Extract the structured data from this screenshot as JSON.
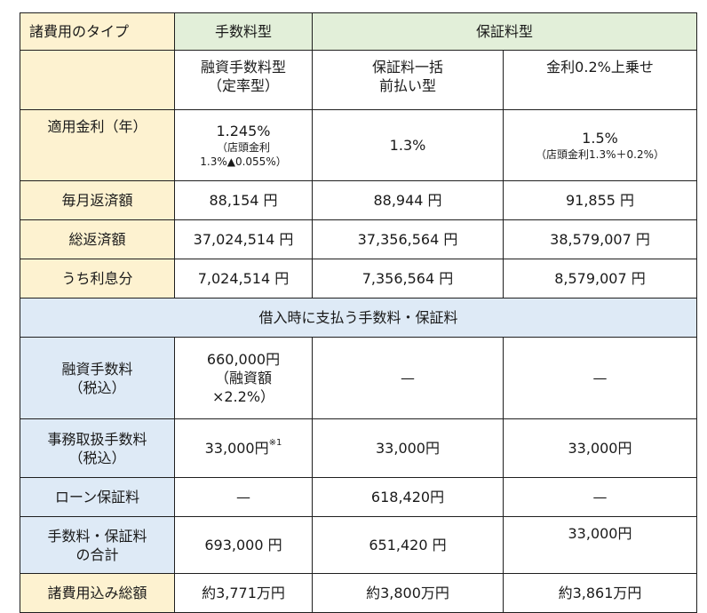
{
  "headers": {
    "corner": "諸費用のタイプ",
    "fee_type": "手数料型",
    "guarantee_type": "保証料型"
  },
  "subheaders": {
    "col1_line1": "融資手数料型",
    "col1_line2": "（定率型）",
    "col2_line1": "保証料一括",
    "col2_line2": "前払い型",
    "col3": "金利0.2%上乗せ"
  },
  "rate": {
    "label": "適用金利（年）",
    "col1_main": "1.245%",
    "col1_note1": "（店頭金利",
    "col1_note2": "1.3%▲0.055%）",
    "col2": "1.3%",
    "col3_main": "1.5%",
    "col3_note": "（店頭金利1.3%＋0.2%）"
  },
  "monthly": {
    "label": "毎月返済額",
    "col1": "88,154 円",
    "col2": "88,944 円",
    "col3": "91,855 円"
  },
  "total": {
    "label": "総返済額",
    "col1": "37,024,514 円",
    "col2": "37,356,564 円",
    "col3": "38,579,007 円"
  },
  "interest": {
    "label": "うち利息分",
    "col1": "7,024,514 円",
    "col2": "7,356,564 円",
    "col3": "8,579,007 円"
  },
  "section": {
    "title": "借入時に支払う手数料・保証料"
  },
  "loan_fee": {
    "label_line1": "融資手数料",
    "label_line2": "（税込）",
    "col1_line1": "660,000円",
    "col1_line2": "（融資額",
    "col1_line3": "×2.2%）",
    "col2": "—",
    "col3": "—"
  },
  "admin_fee": {
    "label_line1": "事務取扱手数料",
    "label_line2": "（税込）",
    "col1": "33,000円",
    "col1_note": "※1",
    "col2": "33,000円",
    "col3": "33,000円"
  },
  "guarantee": {
    "label": "ローン保証料",
    "col1": "—",
    "col2": "618,420円",
    "col3": "—"
  },
  "fee_total": {
    "label_line1": "手数料・保証料",
    "label_line2": "の合計",
    "col1": "693,000 円",
    "col2": "651,420 円",
    "col3": "33,000円"
  },
  "grand_total": {
    "label": "諸費用込み総額",
    "col1": "約3,771万円",
    "col2": "約3,800万円",
    "col3": "約3,861万円"
  }
}
